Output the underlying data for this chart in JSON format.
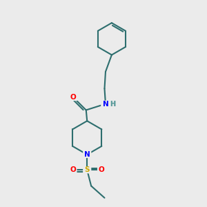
{
  "bg_color": "#ebebeb",
  "bond_color": "#2d6e6e",
  "atom_colors": {
    "O": "#ff0000",
    "N": "#0000ff",
    "S": "#ccaa00",
    "H": "#5a9a9a",
    "C": "#2d6e6e"
  }
}
